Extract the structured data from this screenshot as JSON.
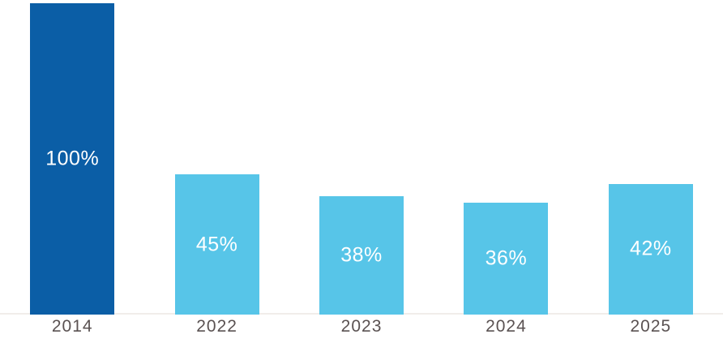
{
  "chart_data": {
    "type": "bar",
    "categories": [
      "2014",
      "2022",
      "2023",
      "2024",
      "2025"
    ],
    "values": [
      100,
      45,
      38,
      36,
      42
    ],
    "value_labels": [
      "100%",
      "45%",
      "38%",
      "36%",
      "42%"
    ],
    "title": "",
    "xlabel": "",
    "ylabel": "",
    "ylim": [
      0,
      100
    ],
    "grid": false,
    "legend": false,
    "colors": {
      "bar_colors": [
        "#0b5ea6",
        "#57c5e8",
        "#57c5e8",
        "#57c5e8",
        "#57c5e8"
      ],
      "value_label_color": "#ffffff",
      "tick_label_color": "#5a5252",
      "axis_line_color": "#f1edea",
      "background": "#ffffff"
    }
  }
}
